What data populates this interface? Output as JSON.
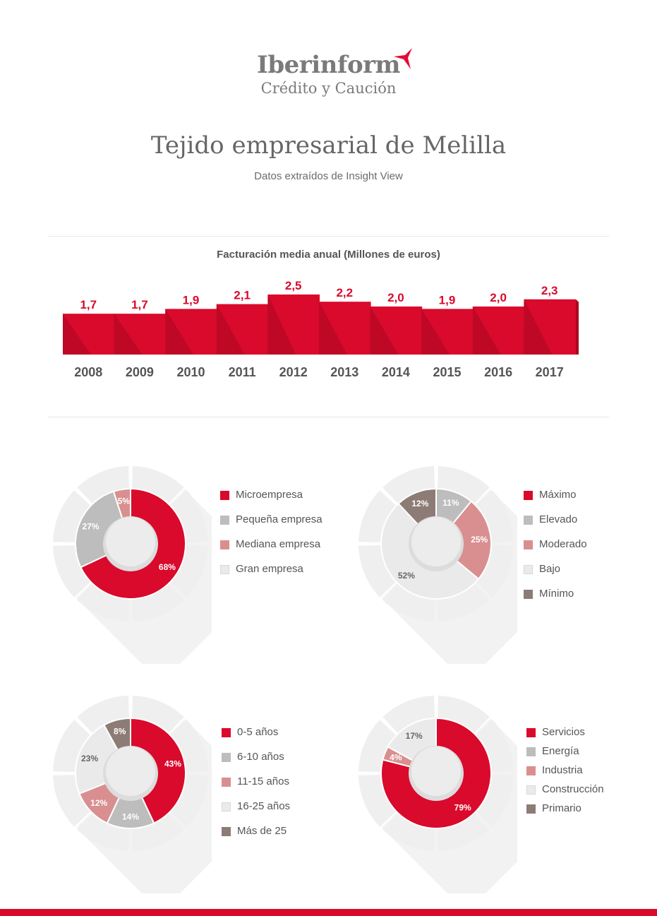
{
  "logo": {
    "name": "Iberinform",
    "subtitle": "Crédito y Caución",
    "accent": "#e30b35"
  },
  "header": {
    "title": "Tejido empresarial de Melilla",
    "subtitle": "Datos extraídos de Insight View"
  },
  "colors": {
    "red": "#d90a2c",
    "gray": "#bdbdbd",
    "pink": "#d98f8f",
    "light": "#eaeaea",
    "brown": "#8d7b75"
  },
  "chart_data": [
    {
      "type": "bar",
      "title": "Facturación media anual (Millones de euros)",
      "categories": [
        "2008",
        "2009",
        "2010",
        "2011",
        "2012",
        "2013",
        "2014",
        "2015",
        "2016",
        "2017"
      ],
      "values": [
        1.7,
        1.7,
        1.9,
        2.1,
        2.5,
        2.2,
        2.0,
        1.9,
        2.0,
        2.3
      ],
      "labels": [
        "1,7",
        "1,7",
        "1,9",
        "2,1",
        "2,5",
        "2,2",
        "2,0",
        "1,9",
        "2,0",
        "2,3"
      ]
    },
    {
      "type": "pie",
      "slices": [
        {
          "name": "Microempresa",
          "value": 68,
          "label": "68%",
          "color": "red"
        },
        {
          "name": "Pequeña empresa",
          "value": 27,
          "label": "27%",
          "color": "gray"
        },
        {
          "name": "Mediana empresa",
          "value": 5,
          "label": "5%",
          "color": "pink"
        },
        {
          "name": "Gran empresa",
          "value": 0,
          "label": "",
          "color": "light"
        }
      ]
    },
    {
      "type": "pie",
      "slices": [
        {
          "name": "Máximo",
          "value": 0,
          "label": "",
          "color": "red"
        },
        {
          "name": "Elevado",
          "value": 11,
          "label": "11%",
          "color": "gray"
        },
        {
          "name": "Moderado",
          "value": 25,
          "label": "25%",
          "color": "pink"
        },
        {
          "name": "Bajo",
          "value": 52,
          "label": "52%",
          "color": "light"
        },
        {
          "name": "Mínimo",
          "value": 12,
          "label": "12%",
          "color": "brown"
        }
      ]
    },
    {
      "type": "pie",
      "slices": [
        {
          "name": "0-5 años",
          "value": 43,
          "label": "43%",
          "color": "red"
        },
        {
          "name": "6-10 años",
          "value": 14,
          "label": "14%",
          "color": "gray"
        },
        {
          "name": "11-15 años",
          "value": 12,
          "label": "12%",
          "color": "pink"
        },
        {
          "name": "16-25 años",
          "value": 23,
          "label": "23%",
          "color": "light"
        },
        {
          "name": "Más de 25",
          "value": 8,
          "label": "8%",
          "color": "brown"
        }
      ]
    },
    {
      "type": "pie",
      "slices": [
        {
          "name": "Servicios",
          "value": 79,
          "label": "79%",
          "color": "red"
        },
        {
          "name": "Energía",
          "value": 0,
          "label": "",
          "color": "gray"
        },
        {
          "name": "Industria",
          "value": 4,
          "label": "4%",
          "color": "pink"
        },
        {
          "name": "Construcción",
          "value": 17,
          "label": "17%",
          "color": "light"
        },
        {
          "name": "Primario",
          "value": 0,
          "label": "",
          "color": "brown"
        }
      ]
    }
  ]
}
